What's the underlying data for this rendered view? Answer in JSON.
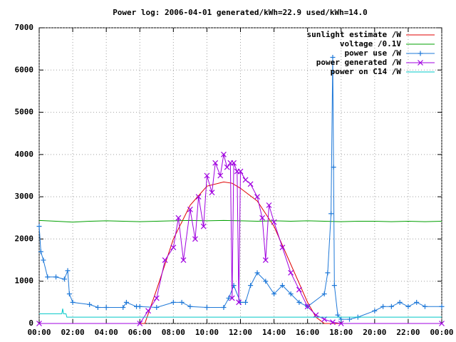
{
  "chart_data": {
    "type": "line",
    "title": "Power log: 2006-04-01 generated/kWh=22.9 used/kWh=14.0",
    "xlim": [
      0,
      24
    ],
    "ylim": [
      0,
      7000
    ],
    "xticks": [
      {
        "value": 0,
        "label": "00:00"
      },
      {
        "value": 2,
        "label": "02:00"
      },
      {
        "value": 4,
        "label": "04:00"
      },
      {
        "value": 6,
        "label": "06:00"
      },
      {
        "value": 8,
        "label": "08:00"
      },
      {
        "value": 10,
        "label": "10:00"
      },
      {
        "value": 12,
        "label": "12:00"
      },
      {
        "value": 14,
        "label": "14:00"
      },
      {
        "value": 16,
        "label": "16:00"
      },
      {
        "value": 18,
        "label": "18:00"
      },
      {
        "value": 20,
        "label": "20:00"
      },
      {
        "value": 22,
        "label": "22:00"
      },
      {
        "value": 24,
        "label": "00:00"
      }
    ],
    "yticks": [
      0,
      1000,
      2000,
      3000,
      4000,
      5000,
      6000,
      7000
    ],
    "grid": true,
    "legend": "top-right",
    "series": [
      {
        "name": "sunlight estimate /W",
        "color": "#e00000",
        "marker": "none",
        "x": [
          0,
          6.3,
          7,
          8,
          9,
          10,
          11,
          11.5,
          12,
          13,
          14,
          15,
          16,
          16.5,
          17,
          24
        ],
        "values": [
          0,
          0,
          800,
          2000,
          2800,
          3250,
          3350,
          3320,
          3200,
          2900,
          2300,
          1400,
          500,
          150,
          0,
          0
        ]
      },
      {
        "name": "voltage /0.1V",
        "color": "#00a000",
        "marker": "none",
        "x": [
          0,
          1,
          2,
          3,
          4,
          5,
          6,
          7,
          8,
          9,
          10,
          11,
          12,
          13,
          14,
          15,
          16,
          17,
          18,
          19,
          20,
          21,
          22,
          23,
          24
        ],
        "values": [
          2440,
          2420,
          2400,
          2420,
          2430,
          2420,
          2410,
          2420,
          2430,
          2440,
          2430,
          2440,
          2430,
          2420,
          2430,
          2420,
          2430,
          2420,
          2410,
          2420,
          2420,
          2410,
          2420,
          2410,
          2420
        ]
      },
      {
        "name": "power use /W",
        "color": "#1e78d8",
        "marker": "plus",
        "x": [
          0,
          0.1,
          0.25,
          0.5,
          1,
          1.5,
          1.7,
          1.8,
          2,
          3,
          3.5,
          4,
          5,
          5.2,
          5.8,
          6,
          7,
          8,
          8.5,
          9,
          10,
          11,
          11.3,
          11.6,
          12,
          12.3,
          12.6,
          13,
          13.5,
          14,
          14.5,
          15,
          15.5,
          16,
          17,
          17.2,
          17.4,
          17.5,
          17.55,
          17.6,
          17.8,
          18,
          18.5,
          19,
          20,
          20.5,
          21,
          21.5,
          22,
          22.5,
          23,
          24
        ],
        "values": [
          2300,
          1700,
          1500,
          1100,
          1100,
          1050,
          1250,
          700,
          500,
          450,
          380,
          380,
          380,
          500,
          400,
          400,
          380,
          500,
          500,
          400,
          380,
          380,
          600,
          900,
          500,
          500,
          900,
          1200,
          1000,
          700,
          900,
          700,
          500,
          400,
          700,
          1200,
          2600,
          6300,
          3700,
          900,
          200,
          100,
          100,
          150,
          300,
          400,
          400,
          500,
          400,
          500,
          400,
          400
        ]
      },
      {
        "name": "power generated /W",
        "color": "#a000e0",
        "marker": "cross",
        "x": [
          0,
          6,
          6.5,
          7,
          7.5,
          8,
          8.3,
          8.6,
          9,
          9.3,
          9.5,
          9.8,
          10,
          10.3,
          10.5,
          10.8,
          11,
          11.2,
          11.4,
          11.5,
          11.6,
          11.8,
          11.9,
          12,
          12.3,
          12.6,
          13,
          13.3,
          13.5,
          13.7,
          14,
          14.5,
          15,
          15.5,
          16,
          16.5,
          17,
          17.5,
          18,
          24
        ],
        "values": [
          0,
          0,
          300,
          600,
          1500,
          1800,
          2500,
          1500,
          2700,
          2000,
          3000,
          2300,
          3500,
          3100,
          3800,
          3500,
          4000,
          3700,
          3800,
          600,
          3800,
          3600,
          500,
          3600,
          3400,
          3300,
          3000,
          2500,
          1500,
          2800,
          2400,
          1800,
          1200,
          800,
          400,
          200,
          100,
          30,
          0,
          0
        ]
      },
      {
        "name": "power on C14 /W",
        "color": "#00c8c8",
        "marker": "none",
        "x": [
          0,
          1.35,
          1.4,
          1.45,
          1.6,
          1.65,
          18,
          24
        ],
        "values": [
          230,
          230,
          350,
          230,
          230,
          150,
          150,
          150
        ]
      }
    ]
  }
}
